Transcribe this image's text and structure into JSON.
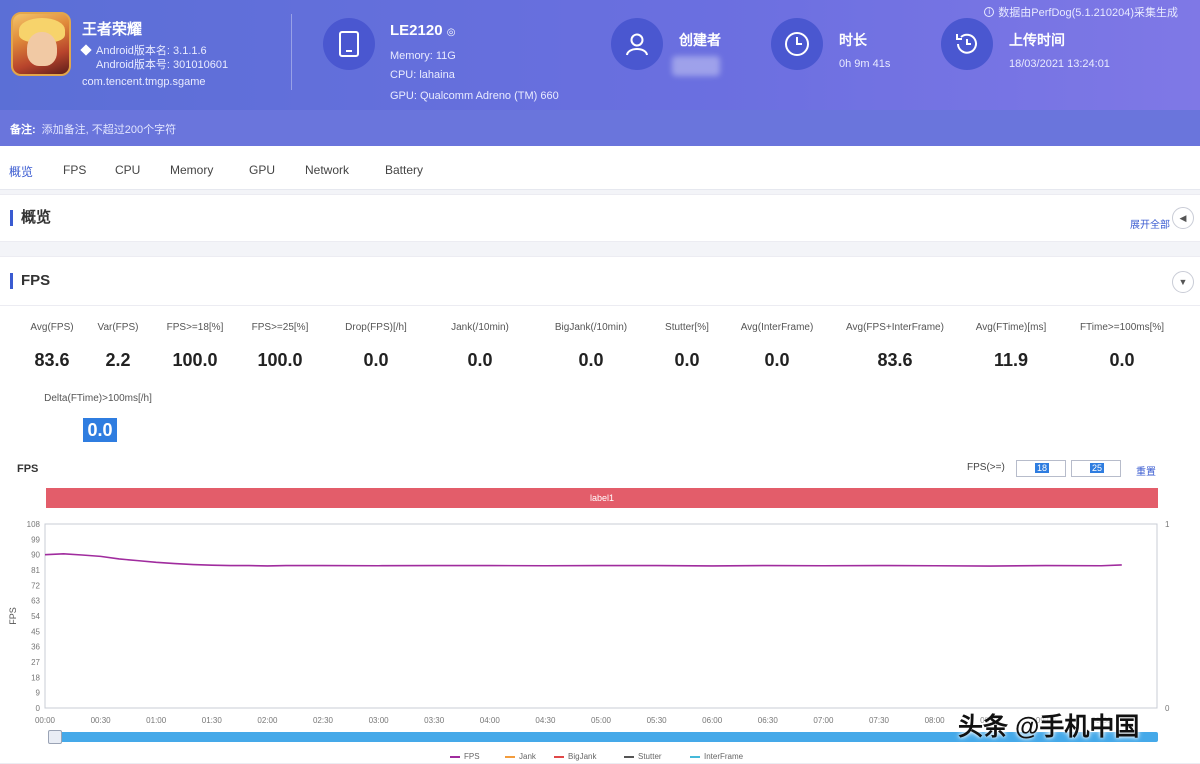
{
  "header": {
    "top_note": "数据由PerfDog(5.1.210204)采集生成",
    "app": {
      "name": "王者荣耀",
      "version_line": "Android版本名: 3.1.1.6",
      "code_line": "Android版本号: 301010601",
      "package": "com.tencent.tmgp.sgame"
    },
    "device": {
      "name": "LE2120",
      "memory": "Memory: 11G",
      "cpu": "CPU: lahaina",
      "gpu": "GPU: Qualcomm Adreno (TM) 660"
    },
    "creator": {
      "label": "创建者"
    },
    "duration": {
      "label": "时长",
      "value": "0h 9m 41s"
    },
    "upload": {
      "label": "上传时间",
      "value": "18/03/2021 13:24:01"
    },
    "note": {
      "label": "备注:",
      "text": "添加备注, 不超过200个字符"
    }
  },
  "tabs": [
    "概览",
    "FPS",
    "CPU",
    "Memory",
    "GPU",
    "Network",
    "Battery"
  ],
  "overview": {
    "title": "概览",
    "expand_link": "展开全部"
  },
  "fps_panel": {
    "title": "FPS",
    "metrics": [
      {
        "label": "Avg(FPS)",
        "value": "83.6"
      },
      {
        "label": "Var(FPS)",
        "value": "2.2"
      },
      {
        "label": "FPS>=18[%]",
        "value": "100.0"
      },
      {
        "label": "FPS>=25[%]",
        "value": "100.0"
      },
      {
        "label": "Drop(FPS)[/h]",
        "value": "0.0"
      },
      {
        "label": "Jank(/10min)",
        "value": "0.0"
      },
      {
        "label": "BigJank(/10min)",
        "value": "0.0"
      },
      {
        "label": "Stutter[%]",
        "value": "0.0"
      },
      {
        "label": "Avg(InterFrame)",
        "value": "0.0"
      },
      {
        "label": "Avg(FPS+InterFrame)",
        "value": "83.6"
      },
      {
        "label": "Avg(FTime)[ms]",
        "value": "11.9"
      },
      {
        "label": "FTime>=100ms[%]",
        "value": "0.0"
      }
    ],
    "delta": {
      "label": "Delta(FTime)>100ms[/h]",
      "value": "0.0"
    }
  },
  "chart": {
    "title": "FPS",
    "fps_ctrl_label": "FPS(>=)",
    "fps_threshold_1": "18",
    "fps_threshold_2": "25",
    "reset_label": "重置",
    "bar_label": "label1",
    "watermark": "头条 @手机中国",
    "legend": [
      {
        "name": "FPS",
        "color": "#a02c9e"
      },
      {
        "name": "Jank",
        "color": "#f39c3c"
      },
      {
        "name": "BigJank",
        "color": "#e04848"
      },
      {
        "name": "Stutter",
        "color": "#555555"
      },
      {
        "name": "InterFrame",
        "color": "#45b9d9"
      }
    ]
  },
  "chart_data": {
    "type": "line",
    "ylabel": "FPS",
    "ylim": [
      0,
      108
    ],
    "yticks": [
      0,
      9,
      18,
      27,
      36,
      45,
      54,
      63,
      72,
      81,
      90,
      99,
      108
    ],
    "y2ticks": [
      0,
      1
    ],
    "xticks": [
      "00:00",
      "00:30",
      "01:00",
      "01:30",
      "02:00",
      "02:30",
      "03:00",
      "03:30",
      "04:00",
      "04:30",
      "05:00",
      "05:30",
      "06:00",
      "06:30",
      "07:00",
      "07:30",
      "08:00",
      "08:30",
      "09:00",
      "09:30"
    ],
    "series": [
      {
        "name": "FPS",
        "x": [
          0,
          10,
          20,
          30,
          40,
          50,
          60,
          70,
          80,
          90,
          100,
          110,
          120,
          130,
          150,
          180,
          210,
          240,
          270,
          300,
          330,
          360,
          390,
          420,
          450,
          480,
          510,
          540,
          570,
          581
        ],
        "values": [
          90,
          90.5,
          89.8,
          89,
          87.5,
          86.5,
          85.5,
          84.8,
          84.2,
          83.8,
          83.6,
          83.6,
          83.4,
          83.6,
          83.6,
          83.5,
          83.6,
          83.6,
          83.5,
          83.6,
          83.6,
          83.4,
          83.6,
          83.5,
          83.6,
          83.5,
          83.3,
          83.6,
          83.5,
          84
        ]
      }
    ]
  }
}
